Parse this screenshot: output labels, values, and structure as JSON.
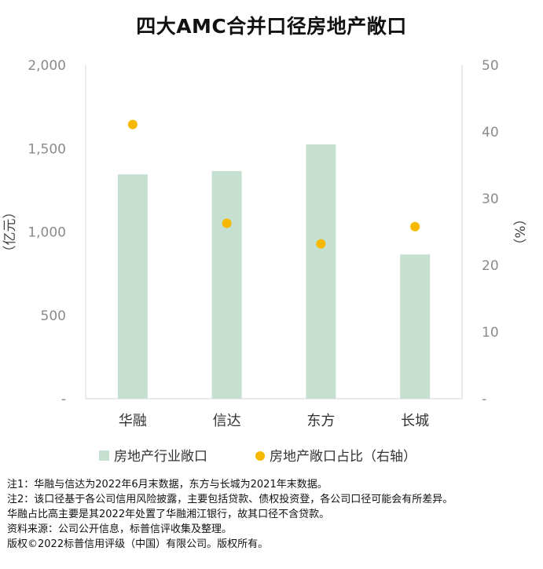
{
  "chart_data": {
    "type": "bar",
    "title": "四大AMC合并口径房地产敞口",
    "categories": [
      "华融",
      "信达",
      "东方",
      "长城"
    ],
    "series": [
      {
        "name": "房地产行业敞口",
        "axis": "left",
        "type": "bar",
        "color": "#c5e0d0",
        "values": [
          1345,
          1365,
          1525,
          865
        ]
      },
      {
        "name": "房地产敞口占比（右轴）",
        "axis": "right",
        "type": "scatter",
        "color": "#f6b800",
        "values": [
          41.1,
          26.3,
          23.2,
          25.8
        ]
      }
    ],
    "ylabel": "（亿元）",
    "y2label": "（%）",
    "ylim": [
      0,
      2000
    ],
    "y2lim": [
      0,
      50
    ],
    "y_ticks": [
      "-",
      "500",
      "1,000",
      "1,500",
      "2,000"
    ],
    "y2_ticks": [
      "-",
      "10",
      "20",
      "30",
      "40",
      "50"
    ],
    "grid": false,
    "legend_position": "bottom"
  },
  "notes": [
    "注1：华融与信达为2022年6月末数据，东方与长城为2021年末数据。",
    "注2：该口径基于各公司信用风险披露，主要包括贷款、债权投资登，各公司口径可能会有所差异。",
    "华融占比高主要是其2022年处置了华融湘江银行，故其口径不含贷款。",
    "资料来源：公司公开信息，标普信评收集及整理。",
    "版权©2022标普信用评级（中国）有限公司。版权所有。"
  ]
}
